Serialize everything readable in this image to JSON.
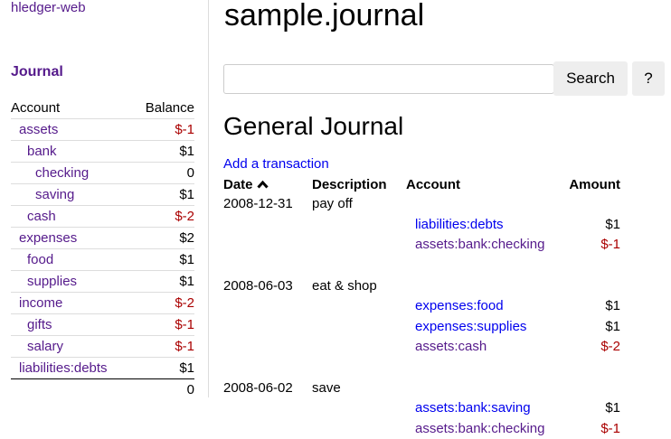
{
  "sidebar": {
    "brand": "hledger-web",
    "journal_link": "Journal",
    "headers": {
      "account": "Account",
      "balance": "Balance"
    },
    "accounts": [
      {
        "name": "assets",
        "balance": "$-1",
        "depth": 1,
        "neg": true
      },
      {
        "name": "bank",
        "balance": "$1",
        "depth": 2
      },
      {
        "name": "checking",
        "balance": "0",
        "depth": 3
      },
      {
        "name": "saving",
        "balance": "$1",
        "depth": 3
      },
      {
        "name": "cash",
        "balance": "$-2",
        "depth": 2,
        "neg": true
      },
      {
        "name": "expenses",
        "balance": "$2",
        "depth": 1
      },
      {
        "name": "food",
        "balance": "$1",
        "depth": 2
      },
      {
        "name": "supplies",
        "balance": "$1",
        "depth": 2
      },
      {
        "name": "income",
        "balance": "$-2",
        "depth": 1,
        "neg": true
      },
      {
        "name": "gifts",
        "balance": "$-1",
        "depth": 2,
        "neg": true
      },
      {
        "name": "salary",
        "balance": "$-1",
        "depth": 2,
        "neg": true
      },
      {
        "name": "liabilities:debts",
        "balance": "$1",
        "depth": 1
      }
    ],
    "total": "0"
  },
  "main": {
    "title": "sample.journal",
    "search": {
      "value": "",
      "button": "Search",
      "help": "?"
    },
    "heading": "General Journal",
    "add_link": "Add a transaction",
    "columns": {
      "date": "Date",
      "sort_icon": "chevron-up",
      "description": "Description",
      "account": "Account",
      "amount": "Amount"
    },
    "transactions": [
      {
        "date": "2008-12-31",
        "description": "pay off",
        "postings": [
          {
            "account": "liabilities:debts",
            "amount": "$1",
            "visited": false
          },
          {
            "account": "assets:bank:checking",
            "amount": "$-1",
            "visited": true,
            "neg": true
          }
        ]
      },
      {
        "date": "2008-06-03",
        "description": "eat & shop",
        "postings": [
          {
            "account": "expenses:food",
            "amount": "$1",
            "visited": false
          },
          {
            "account": "expenses:supplies",
            "amount": "$1",
            "visited": false
          },
          {
            "account": "assets:cash",
            "amount": "$-2",
            "visited": true,
            "neg": true
          }
        ]
      },
      {
        "date": "2008-06-02",
        "description": "save",
        "postings": [
          {
            "account": "assets:bank:saving",
            "amount": "$1",
            "visited": false
          },
          {
            "account": "assets:bank:checking",
            "amount": "$-1",
            "visited": true,
            "neg": true
          }
        ]
      }
    ]
  },
  "colors": {
    "visited": "#551a8b",
    "link": "#0000ee",
    "negative": "#aa0000"
  }
}
